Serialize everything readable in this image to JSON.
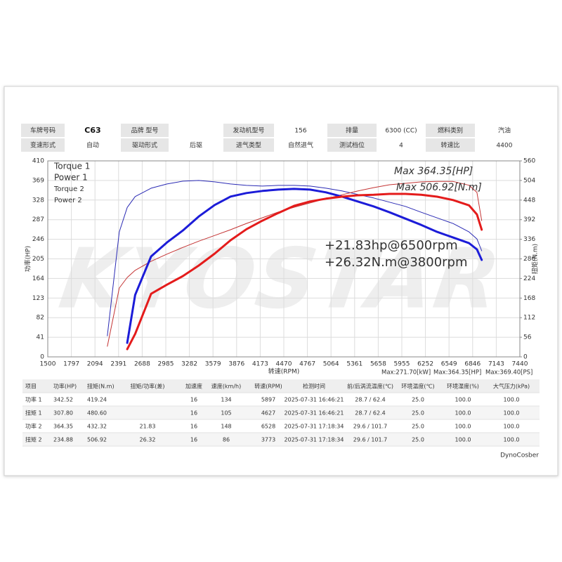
{
  "header": {
    "rows": [
      [
        {
          "label": "车牌号码",
          "value": "C63"
        },
        {
          "label": "品牌 型号"
        },
        {
          "label": "发动机型号",
          "value": "156"
        },
        {
          "label": "排量",
          "value": "6300 (CC)"
        },
        {
          "label": "燃料类别",
          "value": "汽油"
        }
      ],
      [
        {
          "label": "变速形式",
          "value": "自动"
        },
        {
          "label": "驱动形式",
          "value": "后驱"
        },
        {
          "label": "进气类型",
          "value": "自然进气"
        },
        {
          "label": "测试档位",
          "value": "4"
        },
        {
          "label": "转速比",
          "value": "4400"
        }
      ]
    ]
  },
  "chart_data": {
    "type": "line",
    "watermark": "KYOSTAR",
    "xlabel": "转速(RPM)",
    "ylabel": "功率(HP)",
    "y2label": "扭矩(N.m)",
    "x": [
      2250,
      2400,
      2500,
      2600,
      2800,
      3000,
      3200,
      3400,
      3600,
      3800,
      4000,
      4200,
      4400,
      4600,
      4800,
      5000,
      5200,
      5400,
      5600,
      5800,
      6000,
      6200,
      6400,
      6600,
      6800,
      6900,
      6960
    ],
    "xlim": [
      1500,
      7440
    ],
    "xticks": [
      1500,
      1797,
      2094,
      2391,
      2688,
      2985,
      3282,
      3579,
      3876,
      4173,
      4470,
      4767,
      5064,
      5361,
      5658,
      5955,
      6252,
      6549,
      6846,
      7143,
      7440
    ],
    "xtick_colors": [
      "#e02020",
      "#333333",
      "#333333",
      "#333333",
      "#e02020",
      "#333333",
      "#333333",
      "#333333",
      "#e02020",
      "#333333",
      "#333333",
      "#333333",
      "#e02020",
      "#333333",
      "#333333",
      "#333333",
      "#e02020",
      "#333333",
      "#333333",
      "#333333",
      "#e02020"
    ],
    "ylim": [
      0,
      410
    ],
    "yticks": [
      0,
      41,
      82,
      123,
      164,
      205,
      246,
      287,
      328,
      369,
      410
    ],
    "y2lim": [
      0,
      560
    ],
    "y2ticks": [
      0,
      56,
      112,
      168,
      224,
      280,
      336,
      392,
      448,
      504,
      560
    ],
    "grid": true,
    "legend": "upper left",
    "series": [
      {
        "name": "Torque 1",
        "color": "#1c1cd8",
        "axis": "y2",
        "width": 3,
        "values": [
          null,
          null,
          40,
          177,
          287,
          327,
          361,
          401,
          434,
          458,
          468,
          474,
          478,
          480,
          478,
          470,
          458,
          444,
          430,
          413,
          395,
          377,
          357,
          341,
          325,
          307,
          277
        ]
      },
      {
        "name": "Power 1",
        "color": "#e41b1b",
        "width": 3,
        "values": [
          null,
          null,
          16,
          48,
          132,
          151,
          169,
          191,
          216,
          244,
          267,
          285,
          301,
          316,
          325,
          331,
          335,
          338,
          339,
          341,
          341,
          339,
          335,
          328,
          317,
          298,
          266
        ]
      },
      {
        "name": "Torque 2",
        "color": "#2a2ab4",
        "axis": "y2",
        "width": 1,
        "values": [
          60,
          357,
          427,
          458,
          482,
          494,
          502,
          504,
          500,
          494,
          490,
          488,
          490,
          490,
          488,
          482,
          474,
          464,
          454,
          442,
          430,
          413,
          397,
          381,
          357,
          337,
          303
        ]
      },
      {
        "name": "Power 2",
        "color": "#c43434",
        "width": 1,
        "values": [
          22,
          144,
          166,
          181,
          200,
          215,
          229,
          242,
          254,
          266,
          279,
          291,
          303,
          313,
          322,
          331,
          339,
          347,
          354,
          360,
          363,
          366,
          367,
          367,
          359,
          344,
          285
        ]
      }
    ],
    "annotations": [
      {
        "text": "Max 364.35[HP]",
        "color": "#e02020"
      },
      {
        "text": "Max 506.92[N.m]",
        "color": "#2020d0"
      },
      {
        "text": "+21.83hp@6500rpm",
        "color": "#111111"
      },
      {
        "text": "+26.32N.m@3800rpm",
        "color": "#111111"
      }
    ],
    "max_labels": [
      "Max:271.70[kW]",
      "Max:364.35[HP]",
      "Max:369.40[PS]"
    ]
  },
  "table": {
    "columns": [
      "项目",
      "功率(HP)",
      "扭矩(N.m)",
      "扭矩/功率(差)",
      "加速度",
      "速度(km/h)",
      "转速(RPM)",
      "检测时间",
      "前/后涡流温度(℃)",
      "环境温度(℃)",
      "环境湿度(%)",
      "大气压力(kPa)"
    ],
    "rows": [
      [
        "功率 1",
        "342.52",
        "419.24",
        null,
        "16",
        "134",
        "5897",
        "2025-07-31 16:46:21",
        "28.7 / 62.4",
        "25.0",
        "100.0",
        "100.0"
      ],
      [
        "扭矩 1",
        "307.80",
        "480.60",
        null,
        "16",
        "105",
        "4627",
        "2025-07-31 16:46:21",
        "28.7 / 62.4",
        "25.0",
        "100.0",
        "100.0"
      ],
      [
        "功率 2",
        "364.35",
        "432.32",
        "21.83",
        "16",
        "148",
        "6528",
        "2025-07-31 17:18:34",
        "29.6 / 101.7",
        "25.0",
        "100.0",
        "100.0"
      ],
      [
        "扭矩 2",
        "234.88",
        "506.92",
        "26.32",
        "16",
        "86",
        "3773",
        "2025-07-31 17:18:34",
        "29.6 / 101.7",
        "25.0",
        "100.0",
        "100.0"
      ]
    ]
  },
  "footer": "DynoCosber"
}
